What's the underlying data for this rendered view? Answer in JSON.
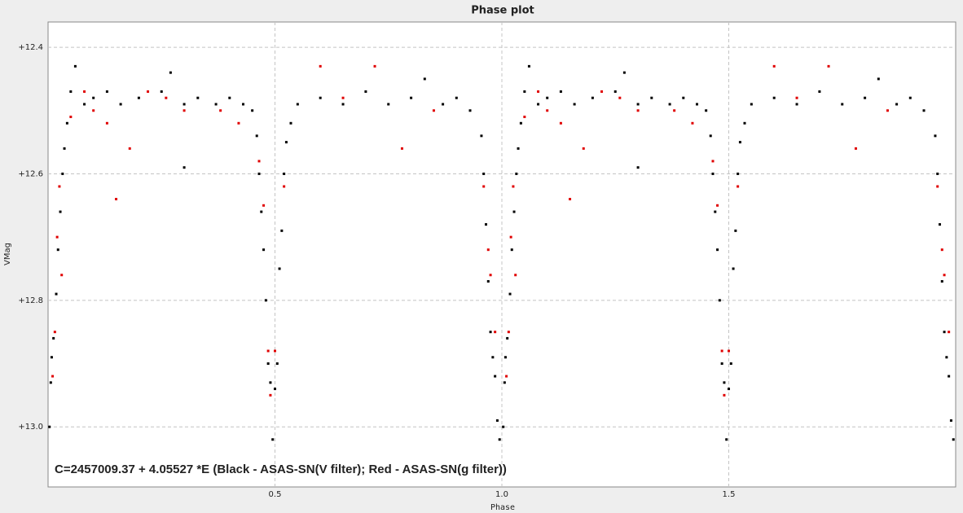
{
  "chart_data": {
    "type": "scatter",
    "title": "Phase plot",
    "x_label": "Phase",
    "y_label": "VMag",
    "annotation": "C=2457009.37 + 4.05527 *E (Black - ASAS-SN(V filter); Red - ASAS-SN(g filter))",
    "annotation_color": "#7a0f0f",
    "xlim": [
      0,
      2
    ],
    "ylim": [
      12.36,
      13.095
    ],
    "y_inverted": true,
    "grid": true,
    "xticks": [
      0.5,
      {
        "value": 1.0,
        "label": "1.0"
      },
      1.5
    ],
    "yticks": [
      {
        "value": 12.4,
        "label": "+12.4"
      },
      {
        "value": 12.6,
        "label": "+12.6"
      },
      {
        "value": 12.8,
        "label": "+12.8"
      },
      {
        "value": 13.0,
        "label": "+13.0"
      }
    ],
    "series": [
      {
        "name": "ASAS-SN(V filter)",
        "color": "#000000",
        "x": [
          0.003,
          0.006,
          0.008,
          0.012,
          0.018,
          0.022,
          0.027,
          0.032,
          0.036,
          0.042,
          0.05,
          0.06,
          0.08,
          0.1,
          0.13,
          0.16,
          0.2,
          0.25,
          0.27,
          0.3,
          0.3,
          0.33,
          0.37,
          0.4,
          0.43,
          0.45,
          0.46,
          0.465,
          0.47,
          0.475,
          0.48,
          0.485,
          0.49,
          0.495,
          0.5,
          0.505,
          0.51,
          0.515,
          0.52,
          0.525,
          0.535,
          0.55,
          0.6,
          0.65,
          0.7,
          0.75,
          0.8,
          0.83,
          0.87,
          0.9,
          0.93,
          0.955,
          0.96,
          0.965,
          0.97,
          0.975,
          0.98,
          0.985,
          0.99,
          0.995,
          1.003,
          1.006,
          1.008,
          1.012,
          1.018,
          1.022,
          1.027,
          1.032,
          1.036,
          1.042,
          1.05,
          1.06,
          1.08,
          1.1,
          1.13,
          1.16,
          1.2,
          1.25,
          1.27,
          1.3,
          1.3,
          1.33,
          1.37,
          1.4,
          1.43,
          1.45,
          1.46,
          1.465,
          1.47,
          1.475,
          1.48,
          1.485,
          1.49,
          1.495,
          1.5,
          1.505,
          1.51,
          1.515,
          1.52,
          1.525,
          1.535,
          1.55,
          1.6,
          1.65,
          1.7,
          1.75,
          1.8,
          1.83,
          1.87,
          1.9,
          1.93,
          1.955,
          1.96,
          1.965,
          1.97,
          1.975,
          1.98,
          1.985,
          1.99,
          1.995
        ],
        "values": [
          13.0,
          12.93,
          12.89,
          12.86,
          12.79,
          12.72,
          12.66,
          12.6,
          12.56,
          12.52,
          12.47,
          12.43,
          12.49,
          12.48,
          12.47,
          12.49,
          12.48,
          12.47,
          12.44,
          12.49,
          12.59,
          12.48,
          12.49,
          12.48,
          12.49,
          12.5,
          12.54,
          12.6,
          12.66,
          12.72,
          12.8,
          12.9,
          12.93,
          13.02,
          12.94,
          12.9,
          12.75,
          12.69,
          12.6,
          12.55,
          12.52,
          12.49,
          12.48,
          12.49,
          12.47,
          12.49,
          12.48,
          12.45,
          12.49,
          12.48,
          12.5,
          12.54,
          12.6,
          12.68,
          12.77,
          12.85,
          12.89,
          12.92,
          12.99,
          13.02,
          13.0,
          12.93,
          12.89,
          12.86,
          12.79,
          12.72,
          12.66,
          12.6,
          12.56,
          12.52,
          12.47,
          12.43,
          12.49,
          12.48,
          12.47,
          12.49,
          12.48,
          12.47,
          12.44,
          12.49,
          12.59,
          12.48,
          12.49,
          12.48,
          12.49,
          12.5,
          12.54,
          12.6,
          12.66,
          12.72,
          12.8,
          12.9,
          12.93,
          13.02,
          12.94,
          12.9,
          12.75,
          12.69,
          12.6,
          12.55,
          12.52,
          12.49,
          12.48,
          12.49,
          12.47,
          12.49,
          12.48,
          12.45,
          12.49,
          12.48,
          12.5,
          12.54,
          12.6,
          12.68,
          12.77,
          12.85,
          12.89,
          12.92,
          12.99,
          13.02
        ]
      },
      {
        "name": "ASAS-SN(g filter)",
        "color": "#e00000",
        "x": [
          0.01,
          0.015,
          0.02,
          0.025,
          0.03,
          0.05,
          0.08,
          0.1,
          0.13,
          0.15,
          0.18,
          0.22,
          0.26,
          0.3,
          0.38,
          0.42,
          0.465,
          0.475,
          0.485,
          0.49,
          0.5,
          0.52,
          0.6,
          0.65,
          0.72,
          0.78,
          0.85,
          0.96,
          0.97,
          0.975,
          0.985,
          1.01,
          1.015,
          1.02,
          1.025,
          1.03,
          1.05,
          1.08,
          1.1,
          1.13,
          1.15,
          1.18,
          1.22,
          1.26,
          1.3,
          1.38,
          1.42,
          1.465,
          1.475,
          1.485,
          1.49,
          1.5,
          1.52,
          1.6,
          1.65,
          1.72,
          1.78,
          1.85,
          1.96,
          1.97,
          1.975,
          1.985
        ],
        "values": [
          12.92,
          12.85,
          12.7,
          12.62,
          12.76,
          12.51,
          12.47,
          12.5,
          12.52,
          12.64,
          12.56,
          12.47,
          12.48,
          12.5,
          12.5,
          12.52,
          12.58,
          12.65,
          12.88,
          12.95,
          12.88,
          12.62,
          12.43,
          12.48,
          12.43,
          12.56,
          12.5,
          12.62,
          12.72,
          12.76,
          12.85,
          12.92,
          12.85,
          12.7,
          12.62,
          12.76,
          12.51,
          12.47,
          12.5,
          12.52,
          12.64,
          12.56,
          12.47,
          12.48,
          12.5,
          12.5,
          12.52,
          12.58,
          12.65,
          12.88,
          12.95,
          12.88,
          12.62,
          12.43,
          12.48,
          12.43,
          12.56,
          12.5,
          12.62,
          12.72,
          12.76,
          12.85
        ]
      }
    ]
  }
}
